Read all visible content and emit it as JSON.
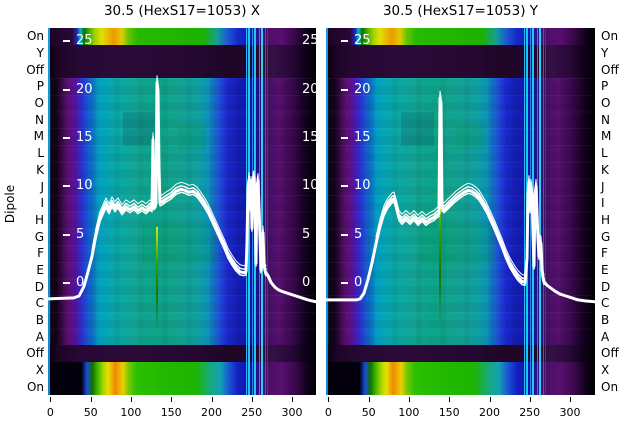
{
  "figure": {
    "ylabel": "Dipole",
    "row_labels": [
      "On",
      "Y",
      "Off",
      "P",
      "O",
      "N",
      "M",
      "L",
      "K",
      "J",
      "I",
      "H",
      "G",
      "F",
      "E",
      "D",
      "C",
      "B",
      "A",
      "Off",
      "X",
      "On"
    ]
  },
  "chart_data": {
    "type": "heatmap+line",
    "grid": false,
    "legend": "none",
    "x_ticks": [
      0,
      50,
      100,
      150,
      200,
      250,
      300
    ],
    "y_ticks": [
      25,
      20,
      15,
      10,
      5,
      0
    ],
    "y_axis_label": "Dipole",
    "row_categories": [
      "On",
      "Y",
      "Off",
      "P",
      "O",
      "N",
      "M",
      "L",
      "K",
      "J",
      "I",
      "H",
      "G",
      "F",
      "E",
      "D",
      "C",
      "B",
      "A",
      "Off",
      "X",
      "On"
    ],
    "heatmap_note": "continuous spectral-style colormap (black-purple-blue-cyan-teal-green-yellow-orange); exact cell values are not labeled in the image",
    "colormap": [
      "#000000",
      "#2a0838",
      "#5c0e74",
      "#2c2ed0",
      "#1262d0",
      "#02a0c2",
      "#12a796",
      "#28b800",
      "#e0e000",
      "#ee9800"
    ],
    "colors": {
      "background": "#ffffff",
      "text": "#000000",
      "curve": "#ffffff",
      "inside_tick_label": "#ffffff",
      "glitch_top": "#d6ec00",
      "glitch_mid": "#35a000",
      "glitch_bottom": "#1d7000",
      "stripe_cyan": "#22c8f0"
    },
    "panels": [
      {
        "title": "30.5 (HexS17=1053) X",
        "right_edge_labels": true,
        "line": {
          "name": "white overlay profile (multiple traces)",
          "bundle_x": [
            50,
            270
          ],
          "points": [
            [
              -3,
              -1.6
            ],
            [
              29,
              -1.5
            ],
            [
              35.5,
              -1.3
            ],
            [
              41.7,
              -0.3
            ],
            [
              46.7,
              1.2
            ],
            [
              51.7,
              2.8
            ],
            [
              56.6,
              5.0
            ],
            [
              61.6,
              6.7
            ],
            [
              65.3,
              7.4
            ],
            [
              69,
              8.1
            ],
            [
              72.8,
              7.5
            ],
            [
              76.5,
              8.2
            ],
            [
              80.2,
              7.7
            ],
            [
              83.9,
              8.1
            ],
            [
              88.9,
              7.4
            ],
            [
              93.9,
              7.9
            ],
            [
              98.8,
              7.6
            ],
            [
              103.8,
              7.9
            ],
            [
              108.8,
              7.5
            ],
            [
              113.7,
              7.8
            ],
            [
              118.7,
              7.5
            ],
            [
              123.7,
              7.9
            ],
            [
              126.2,
              7.7
            ],
            [
              127.4,
              14.8
            ],
            [
              128.6,
              7.9
            ],
            [
              131.1,
              8.2
            ],
            [
              132.4,
              20.7
            ],
            [
              133.6,
              19.9
            ],
            [
              134.9,
              11.9
            ],
            [
              136.1,
              8.3
            ],
            [
              138.6,
              8.4
            ],
            [
              143.6,
              8.7
            ],
            [
              149.8,
              9.0
            ],
            [
              156,
              9.5
            ],
            [
              162.2,
              9.7
            ],
            [
              167.1,
              9.6
            ],
            [
              172.1,
              9.4
            ],
            [
              177.1,
              9.5
            ],
            [
              182,
              9.2
            ],
            [
              185.8,
              8.8
            ],
            [
              190.7,
              8.2
            ],
            [
              195.7,
              7.5
            ],
            [
              200.7,
              6.6
            ],
            [
              205.6,
              5.7
            ],
            [
              210.6,
              4.8
            ],
            [
              215.6,
              3.9
            ],
            [
              220.5,
              2.9
            ],
            [
              225.5,
              2.2
            ],
            [
              230.5,
              1.6
            ],
            [
              235.4,
              1.2
            ],
            [
              240.4,
              1.1
            ],
            [
              242.9,
              1.2
            ],
            [
              244.1,
              4.2
            ],
            [
              245.4,
              9.8
            ],
            [
              246.6,
              10.7
            ],
            [
              247.9,
              7.8
            ],
            [
              249.1,
              10.3
            ],
            [
              250.3,
              5.7
            ],
            [
              251.6,
              10.7
            ],
            [
              252.8,
              10.9
            ],
            [
              254.1,
              8.8
            ],
            [
              255.3,
              2.1
            ],
            [
              256.5,
              10.0
            ],
            [
              257.8,
              10.6
            ],
            [
              259,
              7.8
            ],
            [
              260.3,
              4.7
            ],
            [
              261.5,
              1.4
            ],
            [
              262.7,
              2.1
            ],
            [
              264,
              5.2
            ],
            [
              265.2,
              2.0
            ],
            [
              266.5,
              1.3
            ],
            [
              267.7,
              1.1
            ],
            [
              270.2,
              0.8
            ],
            [
              273.9,
              0.1
            ],
            [
              278.9,
              -0.4
            ],
            [
              283.9,
              -0.7
            ],
            [
              290.1,
              -0.9
            ],
            [
              297.5,
              -1.1
            ],
            [
              305,
              -1.3
            ],
            [
              312.4,
              -1.5
            ],
            [
              319.9,
              -1.7
            ],
            [
              329.8,
              -1.9
            ]
          ]
        },
        "main_spike": {
          "x": 132.4,
          "peak": 20.7
        },
        "secondary_spike": {
          "x": 127.4,
          "peak": 14.8
        },
        "burst": {
          "x_range": [
            243,
            270
          ],
          "peak": 10.9
        },
        "glitch": {
          "x": 132,
          "top": 5.8,
          "bottom": -4.8
        },
        "stripes": [
          {
            "x": 243.5,
            "w": 1,
            "c": "#2ab4ff"
          },
          {
            "x": 246.6,
            "w": 1.5,
            "c": "#18c8f0"
          },
          {
            "x": 251,
            "w": 1,
            "c": "#2f7ff0"
          },
          {
            "x": 254.6,
            "w": 2,
            "c": "#20c8f0"
          },
          {
            "x": 259,
            "w": 1,
            "c": "#2f80e0"
          },
          {
            "x": 262.8,
            "w": 1.5,
            "c": "#28d0f8"
          },
          {
            "x": 266.5,
            "w": 1,
            "c": "#2f60d0"
          },
          {
            "x": 269.6,
            "w": 1,
            "c": "#3838b0"
          }
        ]
      },
      {
        "title": "30.5 (HexS17=1053) Y",
        "right_edge_labels": false,
        "line": {
          "name": "white overlay profile (multiple traces)",
          "bundle_x": [
            56,
            268
          ],
          "points": [
            [
              -3,
              -1.7
            ],
            [
              34.3,
              -1.7
            ],
            [
              39.2,
              -1.6
            ],
            [
              44.2,
              -1.0
            ],
            [
              49.2,
              0.4
            ],
            [
              54.1,
              2.1
            ],
            [
              59.1,
              4.1
            ],
            [
              64.1,
              5.9
            ],
            [
              69,
              7.3
            ],
            [
              74,
              8.1
            ],
            [
              79,
              8.6
            ],
            [
              81.5,
              8.7
            ],
            [
              83.9,
              8.0
            ],
            [
              87.7,
              6.8
            ],
            [
              91.4,
              6.4
            ],
            [
              96.4,
              6.8
            ],
            [
              101.3,
              6.4
            ],
            [
              106.3,
              6.8
            ],
            [
              111.3,
              6.3
            ],
            [
              116.2,
              6.7
            ],
            [
              121.2,
              6.3
            ],
            [
              126.2,
              6.6
            ],
            [
              131.1,
              6.8
            ],
            [
              134.9,
              7.1
            ],
            [
              137.3,
              7.2
            ],
            [
              138.6,
              19.1
            ],
            [
              139.8,
              18.6
            ],
            [
              141.1,
              7.8
            ],
            [
              143.6,
              7.6
            ],
            [
              148.5,
              8.0
            ],
            [
              153.5,
              8.4
            ],
            [
              158.5,
              8.8
            ],
            [
              163.4,
              9.1
            ],
            [
              168.4,
              9.4
            ],
            [
              173.4,
              9.6
            ],
            [
              178.3,
              9.5
            ],
            [
              183.3,
              9.2
            ],
            [
              187,
              8.9
            ],
            [
              190.7,
              8.4
            ],
            [
              195.7,
              7.7
            ],
            [
              200.7,
              6.8
            ],
            [
              205.6,
              5.9
            ],
            [
              210.6,
              4.9
            ],
            [
              215.6,
              3.9
            ],
            [
              220.5,
              2.8
            ],
            [
              225.5,
              1.9
            ],
            [
              230.5,
              1.2
            ],
            [
              235.4,
              0.6
            ],
            [
              240.4,
              0.2
            ],
            [
              244.1,
              0.1
            ],
            [
              246.6,
              2.6
            ],
            [
              247.9,
              9.3
            ],
            [
              249.1,
              10.4
            ],
            [
              250.3,
              7.6
            ],
            [
              251.6,
              10.0
            ],
            [
              252.8,
              9.2
            ],
            [
              254.1,
              5.2
            ],
            [
              255.3,
              1.8
            ],
            [
              256.5,
              9.0
            ],
            [
              257.8,
              10.0
            ],
            [
              259,
              7.3
            ],
            [
              260.3,
              4.5
            ],
            [
              261.5,
              2.8
            ],
            [
              262.7,
              4.3
            ],
            [
              264,
              4.1
            ],
            [
              265.2,
              1.4
            ],
            [
              266.5,
              0.6
            ],
            [
              267.7,
              0.2
            ],
            [
              271.4,
              -0.2
            ],
            [
              276.4,
              -0.5
            ],
            [
              281.4,
              -0.8
            ],
            [
              287.6,
              -1.1
            ],
            [
              295,
              -1.3
            ],
            [
              302.5,
              -1.5
            ],
            [
              309.9,
              -1.7
            ],
            [
              318.6,
              -1.8
            ],
            [
              332.3,
              -1.9
            ]
          ]
        },
        "main_spike": {
          "x": 138.6,
          "peak": 19.1
        },
        "burst": {
          "x_range": [
            246,
            268
          ],
          "peak": 10.4
        },
        "glitch": {
          "x": 138.5,
          "top": 10.6,
          "bottom": -4.1
        },
        "stripes": [
          {
            "x": 243.5,
            "w": 1,
            "c": "#2ab4ff"
          },
          {
            "x": 246.6,
            "w": 1.5,
            "c": "#18c8f0"
          },
          {
            "x": 251,
            "w": 1,
            "c": "#2f7ff0"
          },
          {
            "x": 254.6,
            "w": 2,
            "c": "#20c8f0"
          },
          {
            "x": 259,
            "w": 1,
            "c": "#2f80e0"
          },
          {
            "x": 262.8,
            "w": 1.5,
            "c": "#28d0f8"
          },
          {
            "x": 266.5,
            "w": 1,
            "c": "#2f60d0"
          },
          {
            "x": 269.6,
            "w": 1,
            "c": "#3838b0"
          }
        ]
      }
    ]
  }
}
